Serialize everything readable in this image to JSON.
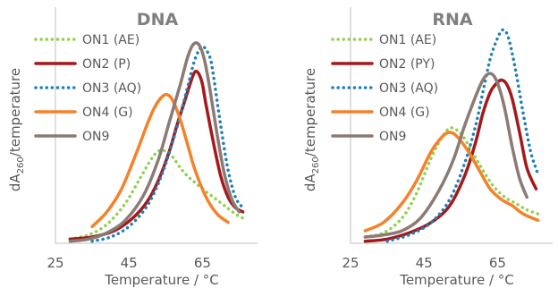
{
  "chart_data": [
    {
      "type": "line",
      "title": "DNA",
      "xlabel": "Temperature / °C",
      "ylabel_main": "dA",
      "ylabel_sub": "260",
      "ylabel_rest": "/temperature",
      "xticks": [
        25,
        45,
        65
      ],
      "xlim": [
        25,
        80
      ],
      "ylim": [
        0,
        1
      ],
      "legend_position": "top-left",
      "series": [
        {
          "name": "ON1 (AE)",
          "color": "#92d050",
          "style": "dotted",
          "x": [
            29,
            34,
            39,
            44,
            48,
            51,
            53,
            55,
            57,
            59,
            61,
            63,
            65,
            68,
            71,
            74,
            76
          ],
          "y": [
            0.02,
            0.04,
            0.09,
            0.19,
            0.31,
            0.4,
            0.44,
            0.44,
            0.41,
            0.36,
            0.32,
            0.29,
            0.26,
            0.22,
            0.18,
            0.14,
            0.12
          ]
        },
        {
          "name": "ON2 (P)",
          "color": "#a5191c",
          "style": "solid",
          "x": [
            29,
            35,
            41,
            46,
            50,
            53,
            56,
            58,
            60,
            62,
            63,
            64,
            65,
            66,
            68,
            70,
            72,
            74,
            76
          ],
          "y": [
            0.02,
            0.03,
            0.06,
            0.12,
            0.2,
            0.3,
            0.44,
            0.56,
            0.67,
            0.78,
            0.82,
            0.81,
            0.76,
            0.66,
            0.48,
            0.32,
            0.22,
            0.17,
            0.15
          ]
        },
        {
          "name": "ON3 (AQ)",
          "color": "#1f7fb8",
          "style": "dotted",
          "x": [
            35,
            40,
            45,
            50,
            54,
            58,
            61,
            63,
            65,
            67,
            68,
            70,
            72,
            74,
            76
          ],
          "y": [
            0.01,
            0.03,
            0.08,
            0.18,
            0.33,
            0.55,
            0.75,
            0.88,
            0.94,
            0.89,
            0.8,
            0.56,
            0.35,
            0.22,
            0.17
          ]
        },
        {
          "name": "ON4 (G)",
          "color": "#f5822a",
          "style": "solid",
          "x": [
            35,
            39,
            43,
            47,
            50,
            52,
            54,
            55.5,
            57,
            59,
            61,
            63,
            66,
            69,
            72
          ],
          "y": [
            0.08,
            0.15,
            0.26,
            0.43,
            0.57,
            0.65,
            0.7,
            0.71,
            0.68,
            0.59,
            0.47,
            0.35,
            0.22,
            0.14,
            0.1
          ]
        },
        {
          "name": "ON9",
          "color": "#8c7b75",
          "style": "solid",
          "x": [
            29,
            34,
            39,
            44,
            49,
            53,
            56,
            59,
            61,
            62.5,
            64,
            65.5,
            67,
            69,
            71,
            73,
            75
          ],
          "y": [
            0.01,
            0.02,
            0.05,
            0.11,
            0.23,
            0.4,
            0.58,
            0.76,
            0.89,
            0.95,
            0.95,
            0.88,
            0.74,
            0.52,
            0.33,
            0.21,
            0.15
          ]
        }
      ]
    },
    {
      "type": "line",
      "title": "RNA",
      "xlabel": "Temperature / °C",
      "ylabel_main": "dA",
      "ylabel_sub": "260",
      "ylabel_rest": "/temperature",
      "xticks": [
        25,
        45,
        65
      ],
      "xlim": [
        25,
        80
      ],
      "ylim": [
        0,
        1
      ],
      "legend_position": "top-left",
      "series": [
        {
          "name": "ON1 (AE)",
          "color": "#92d050",
          "style": "dotted",
          "x": [
            29,
            34,
            39,
            43,
            47,
            50,
            52,
            54,
            56,
            58,
            61,
            64,
            67,
            70,
            73,
            76
          ],
          "y": [
            0.03,
            0.05,
            0.12,
            0.24,
            0.41,
            0.51,
            0.55,
            0.54,
            0.5,
            0.44,
            0.35,
            0.27,
            0.22,
            0.19,
            0.16,
            0.14
          ]
        },
        {
          "name": "ON2 (PY)",
          "color": "#a5191c",
          "style": "solid",
          "x": [
            29,
            35,
            41,
            47,
            52,
            56,
            59,
            61,
            63,
            64.5,
            66,
            67.5,
            69,
            71,
            73,
            75.5
          ],
          "y": [
            0.01,
            0.02,
            0.05,
            0.1,
            0.18,
            0.32,
            0.48,
            0.62,
            0.72,
            0.76,
            0.78,
            0.76,
            0.69,
            0.53,
            0.36,
            0.26
          ]
        },
        {
          "name": "ON3 (AQ)",
          "color": "#1f7fb8",
          "style": "dotted",
          "x": [
            35,
            41,
            47,
            52,
            56,
            59,
            61,
            63,
            65,
            66.5,
            68,
            70,
            72,
            74,
            76
          ],
          "y": [
            0.01,
            0.04,
            0.1,
            0.21,
            0.38,
            0.56,
            0.72,
            0.88,
            0.98,
            1.02,
            0.98,
            0.82,
            0.62,
            0.44,
            0.33
          ]
        },
        {
          "name": "ON4 (G)",
          "color": "#f5822a",
          "style": "solid",
          "x": [
            29,
            34,
            39,
            43,
            47,
            50,
            52,
            54,
            57,
            60,
            63,
            66,
            69,
            72,
            76
          ],
          "y": [
            0.06,
            0.1,
            0.19,
            0.3,
            0.44,
            0.51,
            0.53,
            0.51,
            0.44,
            0.35,
            0.26,
            0.21,
            0.18,
            0.14,
            0.11
          ]
        },
        {
          "name": "ON9",
          "color": "#8c7b75",
          "style": "solid",
          "x": [
            29,
            34,
            39,
            44,
            49,
            53,
            56,
            59,
            61,
            62.5,
            64,
            65.5,
            67,
            69,
            71,
            73
          ],
          "y": [
            0.03,
            0.04,
            0.06,
            0.12,
            0.25,
            0.4,
            0.56,
            0.7,
            0.78,
            0.81,
            0.8,
            0.74,
            0.64,
            0.46,
            0.31,
            0.22
          ]
        }
      ]
    }
  ]
}
